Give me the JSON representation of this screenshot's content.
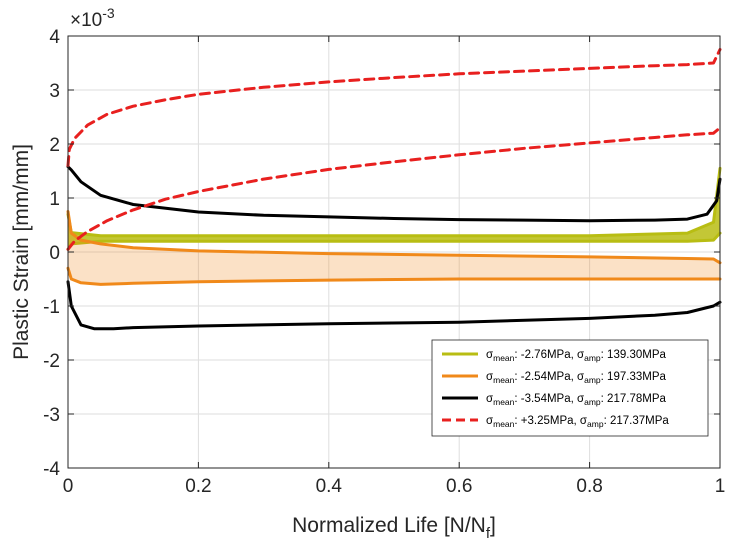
{
  "chart_data": {
    "type": "line",
    "xlabel": "Normalized Life [N/N",
    "xlabel_sub": "f",
    "xlabel_close": "]",
    "ylabel": "Plastic Strain [mm/mm]",
    "y_exponent": "-3",
    "y_exponent_prefix": "×10",
    "xlim": [
      0,
      1
    ],
    "ylim": [
      -4,
      4
    ],
    "x_ticks": [
      0,
      0.2,
      0.4,
      0.6,
      0.8,
      1
    ],
    "x_tick_labels": [
      "0",
      "0.2",
      "0.4",
      "0.6",
      "0.8",
      "1"
    ],
    "y_ticks": [
      -4,
      -3,
      -2,
      -1,
      0,
      1,
      2,
      3,
      4
    ],
    "y_tick_labels": [
      "-4",
      "-3",
      "-2",
      "-1",
      "0",
      "1",
      "2",
      "3",
      "4"
    ],
    "grid": true,
    "legend_position": "bottom-right",
    "series": [
      {
        "name": "σmean: -2.76MPa, σamp: 139.30MPa",
        "legend": {
          "mean": "-2.76MPa",
          "amp": "139.30MPa"
        },
        "color": "#b8bd13",
        "dash": "solid",
        "x": [
          0,
          0.005,
          0.05,
          0.2,
          0.4,
          0.6,
          0.8,
          0.95,
          0.99,
          1
        ],
        "y_upper": [
          0.7,
          0.36,
          0.3,
          0.3,
          0.3,
          0.3,
          0.3,
          0.35,
          0.55,
          1.55
        ],
        "y_lower": [
          0.05,
          0.15,
          0.2,
          0.2,
          0.2,
          0.2,
          0.2,
          0.2,
          0.22,
          0.35
        ]
      },
      {
        "name": "σmean: -2.54MPa, σamp: 197.33MPa",
        "legend": {
          "mean": "-2.54MPa",
          "amp": "197.33MPa"
        },
        "color": "#f0891a",
        "dash": "solid",
        "x": [
          0,
          0.005,
          0.02,
          0.05,
          0.1,
          0.2,
          0.4,
          0.6,
          0.8,
          0.95,
          0.99,
          1
        ],
        "y_upper": [
          0.75,
          0.35,
          0.22,
          0.15,
          0.08,
          0.02,
          -0.03,
          -0.06,
          -0.09,
          -0.12,
          -0.13,
          -0.2
        ],
        "y_lower": [
          -0.3,
          -0.5,
          -0.57,
          -0.6,
          -0.58,
          -0.55,
          -0.52,
          -0.5,
          -0.5,
          -0.5,
          -0.5,
          -0.5
        ]
      },
      {
        "name": "σmean: -3.54MPa, σamp: 217.78MPa",
        "legend": {
          "mean": "-3.54MPa",
          "amp": "217.78MPa"
        },
        "color": "#000000",
        "dash": "solid",
        "x_upper": [
          0,
          0.005,
          0.02,
          0.05,
          0.1,
          0.2,
          0.3,
          0.4,
          0.5,
          0.6,
          0.7,
          0.8,
          0.9,
          0.95,
          0.98,
          0.995,
          1
        ],
        "y_upper": [
          1.58,
          1.52,
          1.3,
          1.05,
          0.88,
          0.74,
          0.68,
          0.65,
          0.62,
          0.6,
          0.59,
          0.58,
          0.59,
          0.61,
          0.7,
          0.95,
          1.35
        ],
        "x_lower": [
          0,
          0.005,
          0.02,
          0.04,
          0.07,
          0.1,
          0.2,
          0.4,
          0.6,
          0.8,
          0.9,
          0.95,
          0.99,
          1
        ],
        "y_lower": [
          -0.55,
          -1.0,
          -1.35,
          -1.42,
          -1.42,
          -1.4,
          -1.37,
          -1.33,
          -1.3,
          -1.23,
          -1.17,
          -1.12,
          -1.0,
          -0.93
        ]
      },
      {
        "name": "σmean: +3.25MPa, σamp: 217.37MPa",
        "legend": {
          "mean": "+3.25MPa",
          "amp": "217.37MPa"
        },
        "color": "#e8201f",
        "dash": "dashed",
        "x_upper": [
          0,
          0.002,
          0.01,
          0.03,
          0.06,
          0.1,
          0.15,
          0.2,
          0.3,
          0.4,
          0.5,
          0.6,
          0.7,
          0.8,
          0.9,
          0.95,
          0.99,
          1
        ],
        "y_upper": [
          1.6,
          1.9,
          2.1,
          2.35,
          2.55,
          2.7,
          2.82,
          2.92,
          3.05,
          3.15,
          3.23,
          3.3,
          3.35,
          3.4,
          3.45,
          3.47,
          3.5,
          3.75
        ],
        "x_lower": [
          0,
          0.01,
          0.03,
          0.06,
          0.1,
          0.15,
          0.2,
          0.3,
          0.4,
          0.5,
          0.6,
          0.7,
          0.8,
          0.9,
          0.95,
          0.99,
          1
        ],
        "y_lower": [
          0.05,
          0.2,
          0.38,
          0.58,
          0.78,
          0.98,
          1.12,
          1.35,
          1.53,
          1.67,
          1.8,
          1.92,
          2.02,
          2.12,
          2.17,
          2.2,
          2.3
        ]
      }
    ]
  }
}
